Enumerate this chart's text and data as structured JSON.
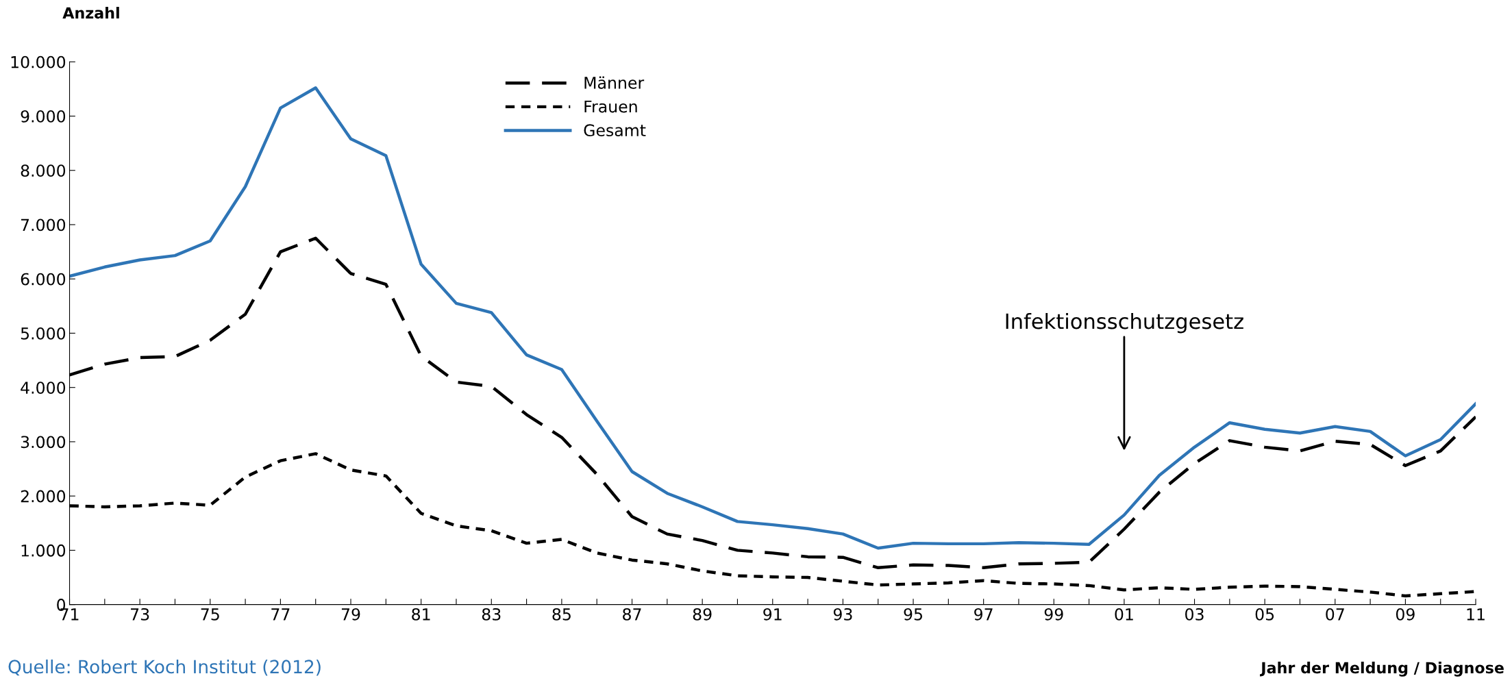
{
  "chart_data": {
    "type": "line",
    "ylabel": "Anzahl",
    "xlabel": "Jahr der Meldung / Diagnose",
    "categories": [
      "71",
      null,
      "73",
      null,
      "75",
      null,
      "77",
      null,
      "79",
      null,
      "81",
      null,
      "83",
      null,
      "85",
      null,
      "87",
      null,
      "89",
      null,
      "91",
      null,
      "93",
      null,
      "95",
      null,
      "97",
      null,
      "99",
      null,
      "01",
      null,
      "03",
      null,
      "05",
      null,
      "07",
      null,
      "09",
      null,
      "11"
    ],
    "series": [
      {
        "name": "Männer",
        "color": "#000000",
        "line_style": "dashed",
        "values": [
          4230,
          4430,
          4550,
          4570,
          4870,
          5350,
          6500,
          6750,
          6100,
          5900,
          4580,
          4100,
          4020,
          3500,
          3080,
          2400,
          1620,
          1300,
          1180,
          1000,
          950,
          880,
          870,
          680,
          730,
          720,
          680,
          750,
          760,
          780,
          1390,
          2070,
          2600,
          3020,
          2900,
          2830,
          3010,
          2950,
          2560,
          2830,
          3460
        ]
      },
      {
        "name": "Frauen",
        "color": "#000000",
        "line_style": "dotted",
        "values": [
          1820,
          1800,
          1820,
          1870,
          1830,
          2350,
          2650,
          2780,
          2480,
          2370,
          1680,
          1450,
          1360,
          1130,
          1200,
          950,
          820,
          750,
          620,
          530,
          510,
          500,
          430,
          360,
          380,
          400,
          440,
          390,
          380,
          350,
          270,
          310,
          280,
          320,
          340,
          330,
          280,
          230,
          160,
          200,
          240
        ]
      },
      {
        "name": "Gesamt",
        "color": "#2e75b6",
        "line_style": "solid",
        "values": [
          6050,
          6220,
          6350,
          6430,
          6700,
          7700,
          9150,
          9520,
          8580,
          8270,
          6270,
          5550,
          5380,
          4600,
          4330,
          3380,
          2450,
          2050,
          1800,
          1530,
          1470,
          1400,
          1300,
          1040,
          1130,
          1120,
          1120,
          1140,
          1130,
          1110,
          1650,
          2380,
          2900,
          3350,
          3230,
          3160,
          3280,
          3190,
          2740,
          3040,
          3700
        ]
      }
    ],
    "ylim": [
      0,
      10000
    ],
    "yticks": [
      0,
      {
        "value": 1000,
        "label": "1.000"
      },
      {
        "value": 2000,
        "label": "2.000"
      },
      {
        "value": 3000,
        "label": "3.000"
      },
      {
        "value": 4000,
        "label": "4.000"
      },
      {
        "value": 5000,
        "label": "5.000"
      },
      {
        "value": 6000,
        "label": "6.000"
      },
      {
        "value": 7000,
        "label": "7.000"
      },
      {
        "value": 8000,
        "label": "8.000"
      },
      {
        "value": 9000,
        "label": "9.000"
      },
      {
        "value": 10000,
        "label": "10.000"
      }
    ],
    "annotations": [
      "Infektionsschutzgesetz",
      "Quelle: Robert Koch Institut (2012)"
    ],
    "grid": false,
    "legend": "top",
    "marker": "none"
  }
}
